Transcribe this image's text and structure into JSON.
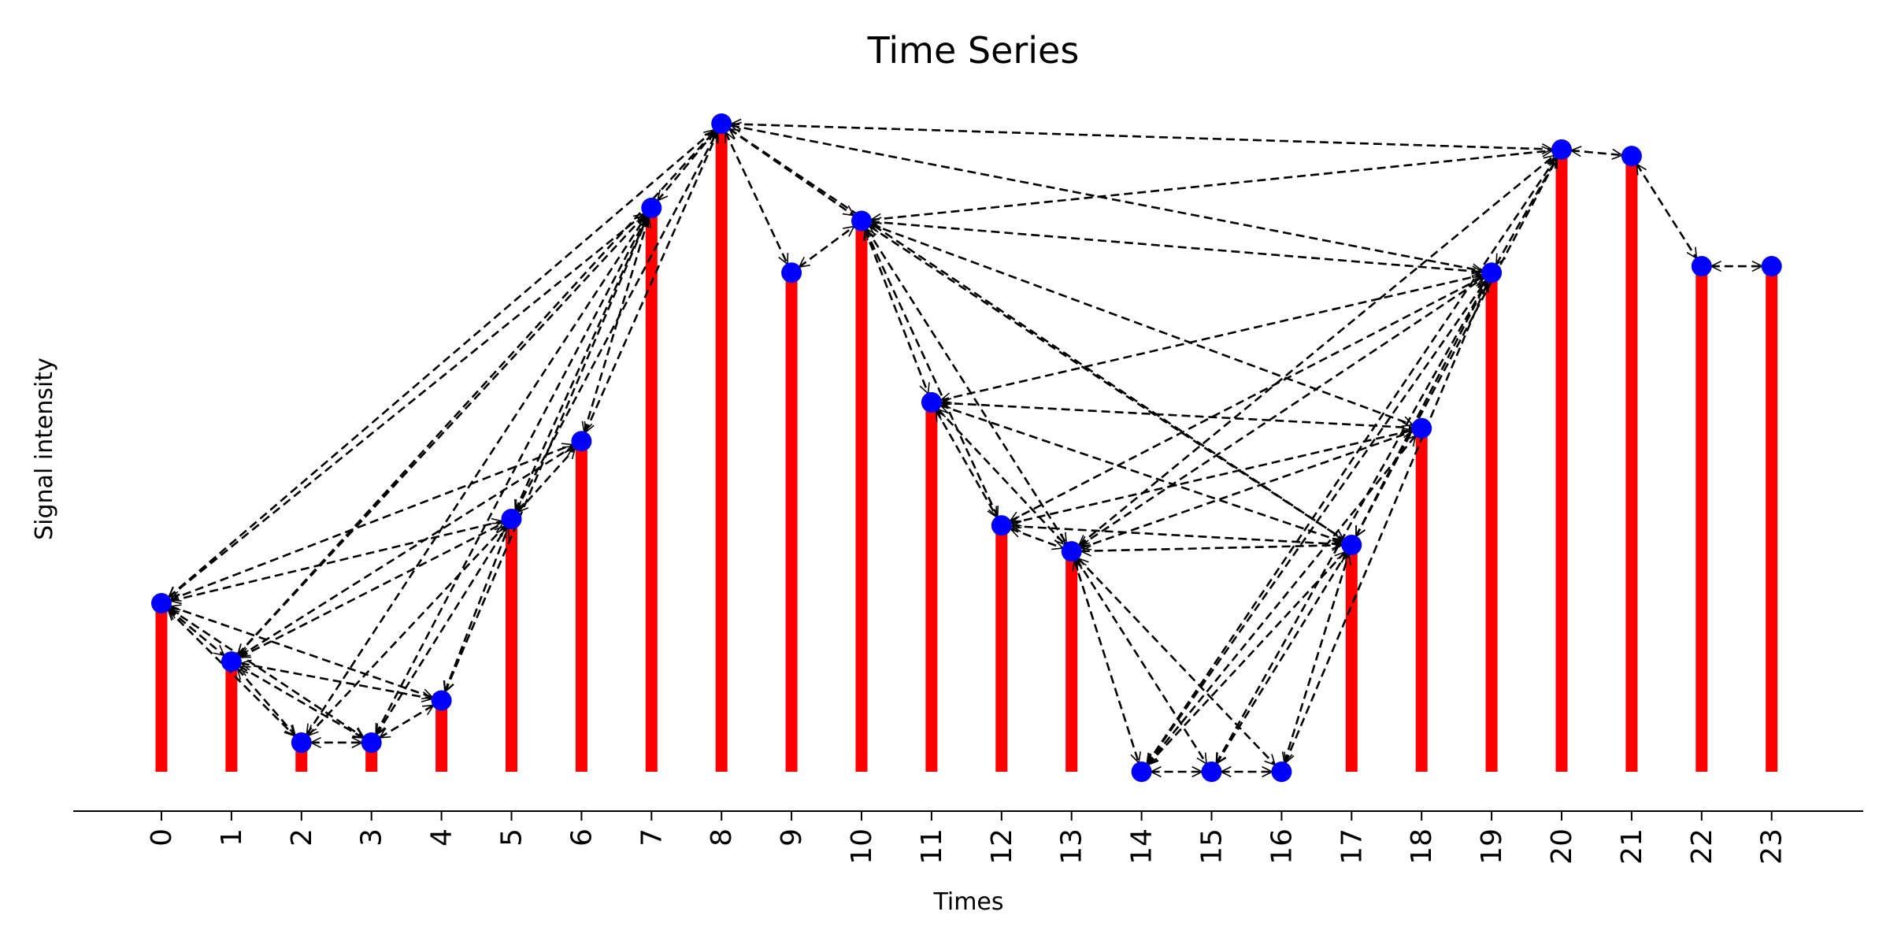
{
  "chart_data": {
    "type": "bar",
    "title": "Time Series",
    "xlabel": "Times",
    "ylabel": "Signal intensity",
    "categories": [
      "0",
      "1",
      "2",
      "3",
      "4",
      "5",
      "6",
      "7",
      "8",
      "9",
      "10",
      "11",
      "12",
      "13",
      "14",
      "15",
      "16",
      "17",
      "18",
      "19",
      "20",
      "21",
      "22",
      "23"
    ],
    "values": [
      0.26,
      0.17,
      0.045,
      0.045,
      0.11,
      0.39,
      0.51,
      0.87,
      1.0,
      0.77,
      0.85,
      0.57,
      0.38,
      0.34,
      0.0,
      0.0,
      0.0,
      0.35,
      0.53,
      0.77,
      0.96,
      0.95,
      0.78,
      0.78
    ],
    "ylim": [
      -0.06,
      1.04
    ],
    "grid": false,
    "legend": "none",
    "edges": [
      [
        0,
        1
      ],
      [
        0,
        2
      ],
      [
        0,
        3
      ],
      [
        0,
        4
      ],
      [
        0,
        5
      ],
      [
        0,
        6
      ],
      [
        0,
        7
      ],
      [
        0,
        8
      ],
      [
        1,
        2
      ],
      [
        1,
        3
      ],
      [
        1,
        4
      ],
      [
        1,
        5
      ],
      [
        1,
        6
      ],
      [
        1,
        7
      ],
      [
        1,
        8
      ],
      [
        2,
        3
      ],
      [
        2,
        5
      ],
      [
        2,
        7
      ],
      [
        3,
        4
      ],
      [
        3,
        5
      ],
      [
        3,
        7
      ],
      [
        4,
        5
      ],
      [
        4,
        7
      ],
      [
        5,
        6
      ],
      [
        5,
        7
      ],
      [
        5,
        8
      ],
      [
        6,
        7
      ],
      [
        6,
        8
      ],
      [
        7,
        8
      ],
      [
        8,
        9
      ],
      [
        8,
        10
      ],
      [
        8,
        17
      ],
      [
        8,
        19
      ],
      [
        8,
        20
      ],
      [
        9,
        10
      ],
      [
        10,
        11
      ],
      [
        10,
        12
      ],
      [
        10,
        13
      ],
      [
        10,
        17
      ],
      [
        10,
        18
      ],
      [
        10,
        19
      ],
      [
        10,
        20
      ],
      [
        11,
        12
      ],
      [
        11,
        13
      ],
      [
        11,
        17
      ],
      [
        11,
        18
      ],
      [
        11,
        19
      ],
      [
        12,
        13
      ],
      [
        12,
        17
      ],
      [
        12,
        18
      ],
      [
        12,
        19
      ],
      [
        13,
        14
      ],
      [
        13,
        15
      ],
      [
        13,
        16
      ],
      [
        13,
        17
      ],
      [
        13,
        18
      ],
      [
        13,
        19
      ],
      [
        13,
        20
      ],
      [
        14,
        15
      ],
      [
        14,
        17
      ],
      [
        14,
        18
      ],
      [
        14,
        19
      ],
      [
        14,
        20
      ],
      [
        15,
        16
      ],
      [
        15,
        17
      ],
      [
        15,
        19
      ],
      [
        16,
        17
      ],
      [
        16,
        19
      ],
      [
        17,
        19
      ],
      [
        17,
        20
      ],
      [
        19,
        20
      ],
      [
        20,
        21
      ],
      [
        21,
        22
      ],
      [
        22,
        23
      ]
    ],
    "colors": {
      "stem": "#ff0000",
      "marker": "#0000ff",
      "edge": "#000000"
    }
  }
}
